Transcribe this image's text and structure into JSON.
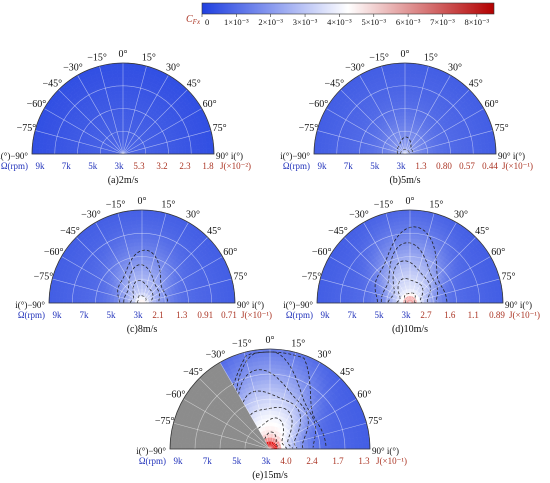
{
  "colorbar": {
    "title": "C",
    "title_sub": "Fx",
    "ticks": [
      "0",
      "1×10⁻³",
      "2×10⁻³",
      "3×10⁻³",
      "4×10⁻³",
      "5×10⁻³",
      "6×10⁻³",
      "7×10⁻³",
      "8×10⁻³"
    ],
    "range": [
      0,
      0.0085
    ],
    "low_color": "#1f3fe0",
    "mid_color": "#ffffff",
    "high_color": "#d40000"
  },
  "chart_data": [
    {
      "type": "heatmap",
      "projection": "polar-semicircle",
      "caption": "(a)2m/s",
      "angle_ticks": [
        "−90°",
        "−75°",
        "−60°",
        "−45°",
        "−30°",
        "−15°",
        "0°",
        "15°",
        "30°",
        "45°",
        "60°",
        "75°",
        "90°"
      ],
      "left_angle_label": "i(°)−90°",
      "right_angle_label": "90° i(°)",
      "omega_label": "Ω(rpm)",
      "omega_ticks": [
        "9k",
        "7k",
        "5k",
        "3k"
      ],
      "j_ticks": [
        "5.3",
        "3.2",
        "2.3",
        "1.8"
      ],
      "j_label": "J(×10⁻²)",
      "intensity": 0.08,
      "blocked": false
    },
    {
      "type": "heatmap",
      "projection": "polar-semicircle",
      "caption": "(b)5m/s",
      "angle_ticks": [
        "−90°",
        "−75°",
        "−60°",
        "−45°",
        "−30°",
        "−15°",
        "0°",
        "15°",
        "30°",
        "45°",
        "60°",
        "75°",
        "90°"
      ],
      "left_angle_label": "i(°)−90°",
      "right_angle_label": "90° i(°)",
      "omega_label": "Ω(rpm)",
      "omega_ticks": [
        "9k",
        "7k",
        "5k",
        "3k"
      ],
      "j_ticks": [
        "1.3",
        "0.80",
        "0.57",
        "0.44"
      ],
      "j_label": "J(×10⁻¹)",
      "intensity": 0.25,
      "blocked": false
    },
    {
      "type": "heatmap",
      "projection": "polar-semicircle",
      "caption": "(c)8m/s",
      "angle_ticks": [
        "−90°",
        "−75°",
        "−60°",
        "−45°",
        "−30°",
        "−15°",
        "0°",
        "15°",
        "30°",
        "45°",
        "60°",
        "75°",
        "90°"
      ],
      "left_angle_label": "i(°)−90°",
      "right_angle_label": "90° i(°)",
      "omega_label": "Ω(rpm)",
      "omega_ticks": [
        "9k",
        "7k",
        "5k",
        "3k"
      ],
      "j_ticks": [
        "2.1",
        "1.3",
        "0.91",
        "0.71"
      ],
      "j_label": "J(×10⁻¹)",
      "intensity": 0.55,
      "blocked": false
    },
    {
      "type": "heatmap",
      "projection": "polar-semicircle",
      "caption": "(d)10m/s",
      "angle_ticks": [
        "−90°",
        "−75°",
        "−60°",
        "−45°",
        "−30°",
        "−15°",
        "0°",
        "15°",
        "30°",
        "45°",
        "60°",
        "75°",
        "90°"
      ],
      "left_angle_label": "i(°)−90°",
      "right_angle_label": "90° i(°)",
      "omega_label": "Ω(rpm)",
      "omega_ticks": [
        "9k",
        "7k",
        "5k",
        "3k"
      ],
      "j_ticks": [
        "2.7",
        "1.6",
        "1.1",
        "0.89"
      ],
      "j_label": "J(×10⁻¹)",
      "intensity": 0.75,
      "blocked": false
    },
    {
      "type": "heatmap",
      "projection": "polar-semicircle",
      "caption": "(e)15m/s",
      "angle_ticks": [
        "−90°",
        "−75°",
        "−60°",
        "−45°",
        "−30°",
        "−15°",
        "0°",
        "15°",
        "30°",
        "45°",
        "60°",
        "75°",
        "90°"
      ],
      "left_angle_label": "i(°)−90°",
      "right_angle_label": "90° i(°)",
      "omega_label": "Ω(rpm)",
      "omega_ticks": [
        "9k",
        "7k",
        "5k",
        "3k"
      ],
      "j_ticks": [
        "4.0",
        "2.4",
        "1.7",
        "1.3"
      ],
      "j_label": "J(×10⁻¹)",
      "intensity": 1.0,
      "blocked": true,
      "blocked_color": "#8c8c8c",
      "blocked_angle_range": [
        -90,
        -30
      ]
    }
  ]
}
